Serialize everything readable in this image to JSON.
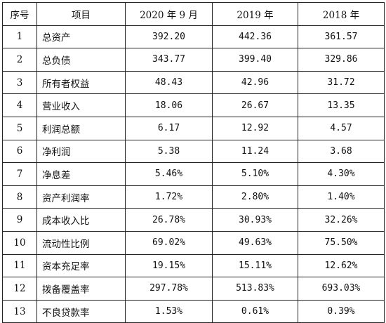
{
  "table": {
    "headers": [
      "序号",
      "项目",
      "2020 年 9 月",
      "2019 年",
      "2018 年"
    ],
    "rows": [
      [
        "1",
        "总资产",
        "392.20",
        "442.36",
        "361.57"
      ],
      [
        "2",
        "总负债",
        "343.77",
        "399.40",
        "329.86"
      ],
      [
        "3",
        "所有者权益",
        "48.43",
        "42.96",
        "31.72"
      ],
      [
        "4",
        "营业收入",
        "18.06",
        "26.67",
        "13.35"
      ],
      [
        "5",
        "利润总额",
        "6.17",
        "12.92",
        "4.57"
      ],
      [
        "6",
        "净利润",
        "5.38",
        "11.24",
        "3.68"
      ],
      [
        "7",
        "净息差",
        "5.46%",
        "5.10%",
        "4.30%"
      ],
      [
        "8",
        "资产利润率",
        "1.72%",
        "2.80%",
        "1.40%"
      ],
      [
        "9",
        "成本收入比",
        "26.78%",
        "30.93%",
        "32.26%"
      ],
      [
        "10",
        "流动性比例",
        "69.02%",
        "49.63%",
        "75.50%"
      ],
      [
        "11",
        "资本充足率",
        "19.15%",
        "15.11%",
        "12.62%"
      ],
      [
        "12",
        "拨备覆盖率",
        "297.78%",
        "513.83%",
        "693.03%"
      ],
      [
        "13",
        "不良贷款率",
        "1.53%",
        "0.61%",
        "0.39%"
      ]
    ]
  }
}
